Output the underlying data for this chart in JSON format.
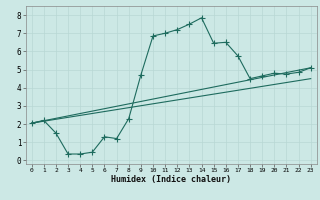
{
  "xlabel": "Humidex (Indice chaleur)",
  "bg_color": "#cce8e5",
  "line_color": "#1e6b5e",
  "grid_color_major": "#b8d8d4",
  "grid_color_minor": "#d4eceb",
  "xlim": [
    -0.5,
    23.5
  ],
  "ylim": [
    -0.2,
    8.5
  ],
  "xticks": [
    0,
    1,
    2,
    3,
    4,
    5,
    6,
    7,
    8,
    9,
    10,
    11,
    12,
    13,
    14,
    15,
    16,
    17,
    18,
    19,
    20,
    21,
    22,
    23
  ],
  "yticks": [
    0,
    1,
    2,
    3,
    4,
    5,
    6,
    7,
    8
  ],
  "series1_x": [
    0,
    1,
    2,
    3,
    4,
    5,
    6,
    7,
    8,
    9,
    10,
    11,
    12,
    13,
    14,
    15,
    16,
    17,
    18,
    19,
    20,
    21,
    22,
    23
  ],
  "series1_y": [
    2.05,
    2.2,
    1.5,
    0.35,
    0.35,
    0.45,
    1.3,
    1.2,
    2.3,
    4.7,
    6.85,
    7.0,
    7.2,
    7.5,
    7.85,
    6.45,
    6.5,
    5.75,
    4.5,
    4.65,
    4.8,
    4.75,
    4.85,
    5.1
  ],
  "series2_x": [
    0,
    23
  ],
  "series2_y": [
    2.05,
    5.1
  ],
  "series3_x": [
    0,
    23
  ],
  "series3_y": [
    2.05,
    4.5
  ],
  "markersize": 2.0,
  "linewidth": 0.8
}
